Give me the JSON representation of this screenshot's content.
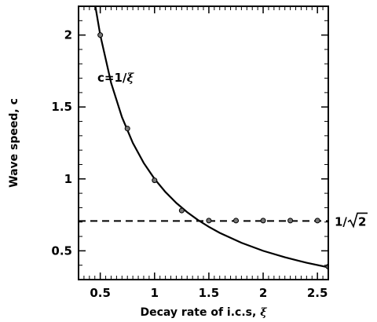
{
  "chart_data": {
    "type": "line",
    "xlabel_text": "Decay rate of i.c.s, ",
    "xlabel_symbol": "ξ",
    "ylabel": "Wave speed, c",
    "xlim": [
      0.3,
      2.6
    ],
    "ylim": [
      0.3,
      2.2
    ],
    "x_ticks": [
      0.5,
      1,
      1.5,
      2,
      2.5
    ],
    "x_tick_labels": [
      "0.5",
      "1",
      "1.5",
      "2",
      "2.5"
    ],
    "y_ticks": [
      0.5,
      1,
      1.5,
      2
    ],
    "y_tick_labels": [
      "0.5",
      "1",
      "1.5",
      "2"
    ],
    "grid": false,
    "series": [
      {
        "kind": "curve",
        "formula": "c = 1/ξ",
        "x": [
          0.45,
          0.5,
          0.6,
          0.7,
          0.8,
          0.9,
          1.0,
          1.1,
          1.2,
          1.3,
          1.4,
          1.5,
          1.6,
          1.8,
          2.0,
          2.2,
          2.4,
          2.6
        ],
        "y": [
          2.222,
          2.0,
          1.667,
          1.429,
          1.25,
          1.111,
          1.0,
          0.909,
          0.833,
          0.769,
          0.714,
          0.667,
          0.625,
          0.556,
          0.5,
          0.455,
          0.417,
          0.385
        ],
        "style": "solid"
      },
      {
        "kind": "reference-line",
        "y_value": 0.7071,
        "style": "dashed"
      },
      {
        "kind": "points",
        "x": [
          0.5,
          0.75,
          1.0,
          1.25,
          1.5,
          1.75,
          2.0,
          2.25,
          2.5,
          2.6
        ],
        "y": [
          2.0,
          1.35,
          0.99,
          0.78,
          0.71,
          0.71,
          0.71,
          0.71,
          0.71,
          0.39
        ]
      }
    ],
    "annotations": {
      "curve_label_prefix": "c=1/",
      "curve_label_symbol": "ξ",
      "line_label_prefix": "1/",
      "line_label_radicand": "2"
    }
  }
}
